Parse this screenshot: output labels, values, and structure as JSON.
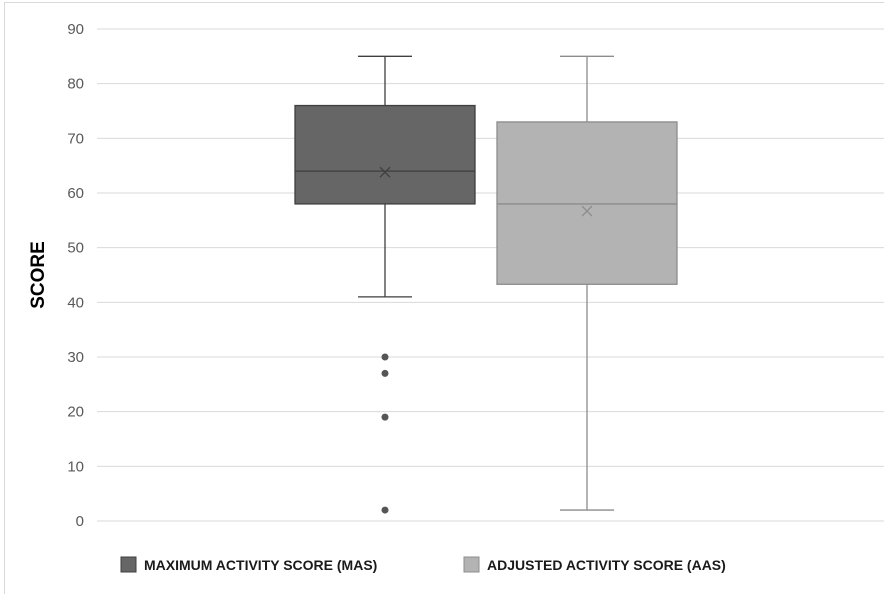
{
  "chart_data": {
    "type": "box",
    "title": "",
    "xlabel": "",
    "ylabel": "SCORE",
    "ylim": [
      0,
      90
    ],
    "yticks": [
      0,
      10,
      20,
      30,
      40,
      50,
      60,
      70,
      80,
      90
    ],
    "grid": true,
    "legend_position": "bottom",
    "series": [
      {
        "name": "MAXIMUM ACTIVITY SCORE (MAS)",
        "color": "#666666",
        "whisker_low": 41,
        "q1": 58,
        "median": 64,
        "q3": 76,
        "whisker_high": 85,
        "mean": 63.8,
        "outliers": [
          30,
          27,
          19,
          2
        ]
      },
      {
        "name": "ADJUSTED ACTIVITY SCORE (AAS)",
        "color": "#b3b3b3",
        "whisker_low": 2,
        "q1": 43.3,
        "median": 58,
        "q3": 73,
        "whisker_high": 85,
        "mean": 56.7,
        "outliers": []
      }
    ]
  }
}
